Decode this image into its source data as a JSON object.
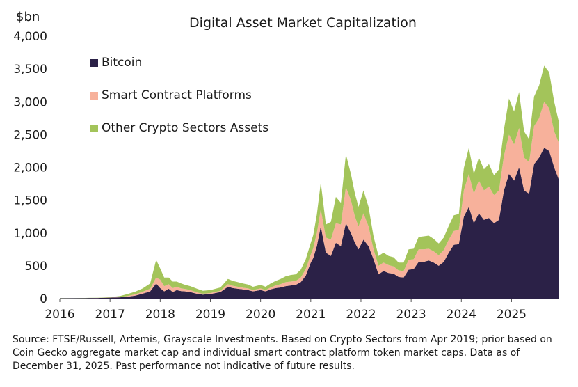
{
  "chart_data": {
    "type": "area",
    "stacked": true,
    "title": "Digital Asset Market Capitalization",
    "ylabel": "$bn",
    "xlabel": "",
    "ylim": [
      0,
      4000
    ],
    "yticks": [
      0,
      500,
      1000,
      1500,
      2000,
      2500,
      3000,
      3500,
      4000
    ],
    "ytick_labels": [
      "0",
      "500",
      "1,000",
      "1,500",
      "2,000",
      "2,500",
      "3,000",
      "3,500",
      "4,000"
    ],
    "xlim": [
      2016.0,
      2025.95
    ],
    "xticks": [
      2016,
      2017,
      2018,
      2019,
      2020,
      2021,
      2022,
      2023,
      2024,
      2025
    ],
    "xtick_labels": [
      "2016",
      "2017",
      "2018",
      "2019",
      "2020",
      "2021",
      "2022",
      "2023",
      "2024",
      "2025"
    ],
    "x": [
      2016.0,
      2016.25,
      2016.5,
      2016.75,
      2017.0,
      2017.2,
      2017.35,
      2017.5,
      2017.65,
      2017.8,
      2017.92,
      2018.0,
      2018.08,
      2018.17,
      2018.25,
      2018.33,
      2018.42,
      2018.5,
      2018.6,
      2018.75,
      2018.85,
      2019.0,
      2019.2,
      2019.35,
      2019.45,
      2019.55,
      2019.65,
      2019.75,
      2019.85,
      2020.0,
      2020.1,
      2020.2,
      2020.3,
      2020.4,
      2020.5,
      2020.6,
      2020.7,
      2020.8,
      2020.9,
      2021.0,
      2021.05,
      2021.12,
      2021.2,
      2021.3,
      2021.4,
      2021.5,
      2021.6,
      2021.7,
      2021.8,
      2021.88,
      2021.95,
      2022.05,
      2022.15,
      2022.25,
      2022.35,
      2022.45,
      2022.55,
      2022.65,
      2022.75,
      2022.85,
      2022.95,
      2023.05,
      2023.15,
      2023.25,
      2023.35,
      2023.45,
      2023.55,
      2023.65,
      2023.75,
      2023.85,
      2023.95,
      2024.05,
      2024.15,
      2024.25,
      2024.35,
      2024.45,
      2024.55,
      2024.65,
      2024.75,
      2024.85,
      2024.95,
      2025.05,
      2025.15,
      2025.25,
      2025.35,
      2025.45,
      2025.55,
      2025.65,
      2025.75,
      2025.85,
      2025.95
    ],
    "series": [
      {
        "name": "Bitcoin",
        "color": "#2b2147",
        "values": [
          5,
          6,
          8,
          10,
          15,
          20,
          30,
          45,
          75,
          110,
          230,
          160,
          110,
          150,
          100,
          130,
          115,
          110,
          100,
          70,
          60,
          70,
          100,
          180,
          160,
          150,
          140,
          130,
          110,
          130,
          110,
          140,
          160,
          170,
          190,
          200,
          210,
          250,
          350,
          550,
          620,
          800,
          1100,
          700,
          650,
          850,
          800,
          1150,
          1000,
          850,
          750,
          900,
          800,
          600,
          370,
          420,
          390,
          380,
          330,
          320,
          440,
          450,
          560,
          560,
          580,
          550,
          500,
          560,
          700,
          820,
          830,
          1250,
          1400,
          1150,
          1300,
          1200,
          1230,
          1150,
          1200,
          1650,
          1900,
          1800,
          2000,
          1650,
          1600,
          2050,
          2150,
          2300,
          2250,
          2000,
          1800
        ]
      },
      {
        "name": "Smart Contract Platforms",
        "color": "#f7b19b",
        "values": [
          0,
          0,
          0,
          1,
          2,
          5,
          10,
          20,
          30,
          40,
          90,
          130,
          80,
          70,
          60,
          50,
          40,
          35,
          30,
          20,
          15,
          15,
          20,
          40,
          35,
          30,
          25,
          25,
          20,
          25,
          20,
          30,
          40,
          50,
          60,
          60,
          60,
          70,
          100,
          120,
          150,
          200,
          260,
          230,
          250,
          300,
          330,
          550,
          500,
          400,
          350,
          400,
          300,
          150,
          130,
          130,
          120,
          110,
          100,
          100,
          150,
          150,
          190,
          190,
          180,
          170,
          160,
          180,
          200,
          210,
          220,
          400,
          500,
          450,
          500,
          450,
          480,
          430,
          450,
          530,
          600,
          550,
          600,
          500,
          480,
          580,
          600,
          700,
          650,
          550,
          560
        ]
      },
      {
        "name": "Other Crypto Sectors Assets",
        "color": "#a3c45a",
        "values": [
          2,
          2,
          3,
          3,
          5,
          15,
          30,
          40,
          50,
          80,
          270,
          170,
          130,
          100,
          100,
          80,
          75,
          65,
          60,
          55,
          45,
          45,
          50,
          80,
          75,
          70,
          65,
          60,
          50,
          55,
          50,
          60,
          70,
          80,
          90,
          100,
          100,
          120,
          150,
          180,
          200,
          280,
          410,
          200,
          270,
          400,
          330,
          500,
          400,
          350,
          300,
          350,
          300,
          200,
          150,
          150,
          140,
          140,
          120,
          130,
          160,
          160,
          190,
          200,
          200,
          190,
          180,
          190,
          210,
          240,
          240,
          340,
          400,
          300,
          350,
          320,
          340,
          300,
          320,
          400,
          550,
          500,
          550,
          400,
          350,
          450,
          500,
          550,
          550,
          450,
          310
        ]
      }
    ],
    "legend": [
      "Bitcoin",
      "Smart Contract Platforms",
      "Other Crypto Sectors Assets"
    ],
    "legend_placement": "top-left",
    "grid": false
  },
  "source_note": "Source: FTSE/Russell, Artemis, Grayscale Investments. Based on Crypto Sectors from Apr 2019; prior based on Coin Gecko aggregate market cap and individual smart contract platform token market caps. Data as of December 31, 2025. Past performance not indicative of future results."
}
